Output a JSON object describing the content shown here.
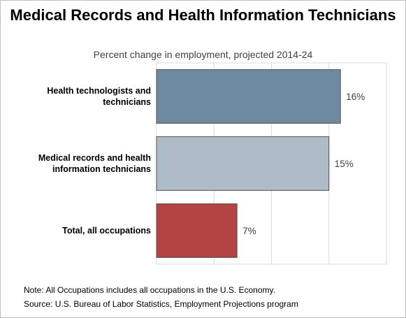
{
  "chart_data": {
    "type": "bar",
    "orientation": "horizontal",
    "title": "Medical Records and Health Information Technicians",
    "subtitle": "Percent change in employment, projected 2014-24",
    "categories": [
      "Health technologists and technicians",
      "Medical records and health information technicians",
      "Total, all occupations"
    ],
    "values": [
      16,
      15,
      7
    ],
    "value_labels": [
      "16%",
      "15%",
      "7%"
    ],
    "colors": [
      "#6e8aa1",
      "#adbcc8",
      "#b44444"
    ],
    "xlim": [
      0,
      20
    ],
    "grid": true
  },
  "notes": {
    "note": "Note: All Occupations includes all occupations in the U.S. Economy.",
    "source": "Source: U.S. Bureau of Labor Statistics, Employment Projections program"
  }
}
